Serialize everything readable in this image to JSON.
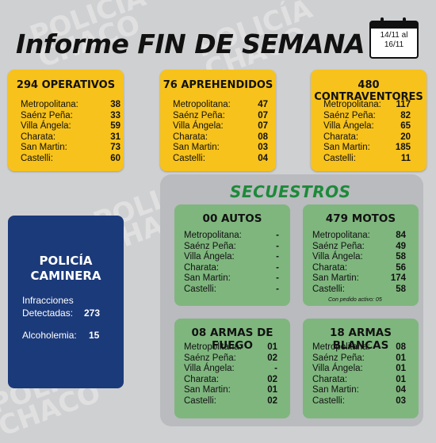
{
  "watermark": {
    "line1": "POLICÍA",
    "line2": "CHACO"
  },
  "header": {
    "title": "Informe FIN DE SEMANA",
    "date_line1": "14/11 al",
    "date_line2": "16/11"
  },
  "cards": {
    "operativos": {
      "title": "294 OPERATIVOS",
      "rows": [
        {
          "label": "Metropolitana:",
          "value": "38"
        },
        {
          "label": "Saénz Peña:",
          "value": "33"
        },
        {
          "label": "Villa Ángela:",
          "value": "59"
        },
        {
          "label": "Charata:",
          "value": "31"
        },
        {
          "label": "San Martin:",
          "value": "73"
        },
        {
          "label": "Castelli:",
          "value": "60"
        }
      ]
    },
    "aprehendidos": {
      "title": "76 APREHENDIDOS",
      "rows": [
        {
          "label": "Metropolitana:",
          "value": "47"
        },
        {
          "label": "Saénz Peña:",
          "value": "07"
        },
        {
          "label": "Villa Ángela:",
          "value": "07"
        },
        {
          "label": "Charata:",
          "value": "08"
        },
        {
          "label": "San Martin:",
          "value": "03"
        },
        {
          "label": "Castelli:",
          "value": "04"
        }
      ]
    },
    "contraventores": {
      "title": "480 CONTRAVENTORES",
      "rows": [
        {
          "label": "Metropolitana:",
          "value": "117"
        },
        {
          "label": "Saénz Peña:",
          "value": "82"
        },
        {
          "label": "Villa Ángela:",
          "value": "65"
        },
        {
          "label": "Charata:",
          "value": "20"
        },
        {
          "label": "San Martin:",
          "value": "185"
        },
        {
          "label": "Castelli:",
          "value": "11"
        }
      ]
    }
  },
  "caminera": {
    "title_line1": "POLICÍA",
    "title_line2": "CAMINERA",
    "infracciones_label1": "Infracciones",
    "infracciones_label2": "Detectadas:",
    "infracciones_value": "273",
    "alcoholemia_label": "Alcoholemia:",
    "alcoholemia_value": "15"
  },
  "secuestros": {
    "title": "SECUESTROS",
    "autos": {
      "title": "00 AUTOS",
      "rows": [
        {
          "label": "Metropolitana:",
          "value": "-"
        },
        {
          "label": "Saénz Peña:",
          "value": "-"
        },
        {
          "label": "Villa Ángela:",
          "value": "-"
        },
        {
          "label": "Charata:",
          "value": "-"
        },
        {
          "label": "San Martin:",
          "value": "-"
        },
        {
          "label": "Castelli:",
          "value": "-"
        }
      ]
    },
    "motos": {
      "title": "479 MOTOS",
      "rows": [
        {
          "label": "Metropolitana:",
          "value": "84"
        },
        {
          "label": "Saénz Peña:",
          "value": "49"
        },
        {
          "label": "Villa Ángela:",
          "value": "58"
        },
        {
          "label": "Charata:",
          "value": "56"
        },
        {
          "label": "San Martin:",
          "value": "174"
        },
        {
          "label": "Castelli:",
          "value": "58"
        }
      ],
      "footnote": "Con pedido activo: 05"
    },
    "armas_fuego": {
      "title": "08 ARMAS DE FUEGO",
      "rows": [
        {
          "label": "Metropolitana:",
          "value": "01"
        },
        {
          "label": "Saénz Peña:",
          "value": "02"
        },
        {
          "label": "Villa Ángela:",
          "value": "-"
        },
        {
          "label": "Charata:",
          "value": "02"
        },
        {
          "label": "San Martin:",
          "value": "01"
        },
        {
          "label": "Castelli:",
          "value": "02"
        }
      ]
    },
    "armas_blancas": {
      "title": "18 ARMAS BLANCAS",
      "rows": [
        {
          "label": "Metropolitana:",
          "value": "08"
        },
        {
          "label": "Saénz Peña:",
          "value": "01"
        },
        {
          "label": "Villa Ángela:",
          "value": "01"
        },
        {
          "label": "Charata:",
          "value": "01"
        },
        {
          "label": "San Martin:",
          "value": "04"
        },
        {
          "label": "Castelli:",
          "value": "03"
        }
      ]
    }
  }
}
